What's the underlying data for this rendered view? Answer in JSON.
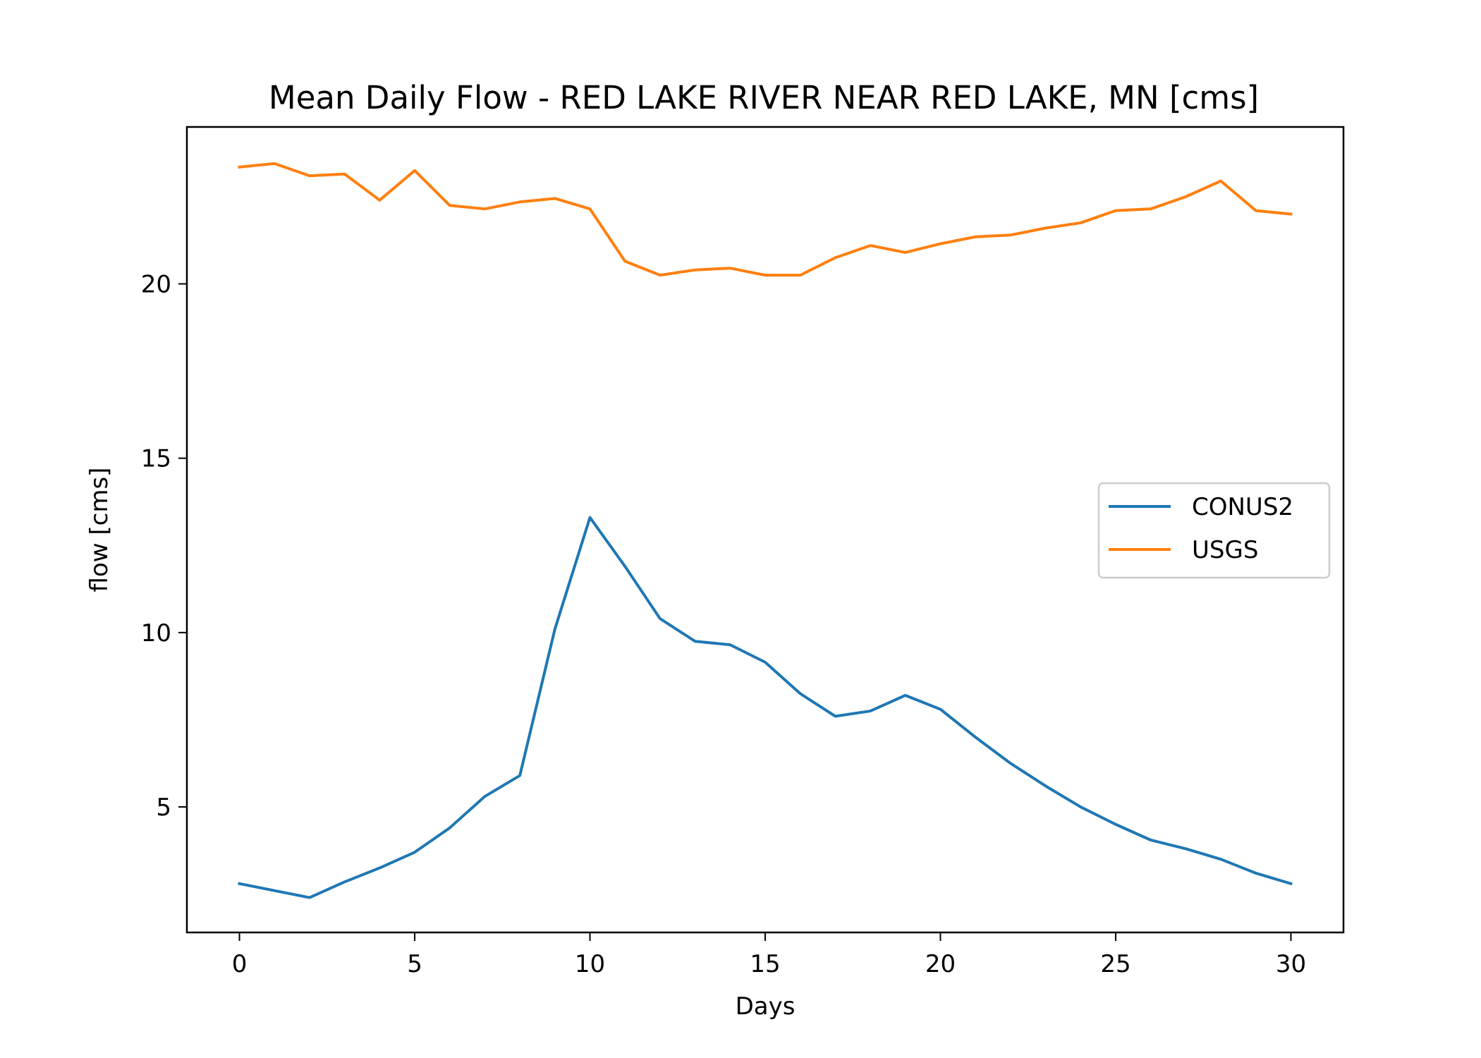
{
  "chart_data": {
    "type": "line",
    "title": "Mean Daily Flow - RED LAKE RIVER NEAR RED LAKE, MN [cms]",
    "xlabel": "Days",
    "ylabel": "flow [cms]",
    "xlim": [
      -1.5,
      31.5
    ],
    "ylim": [
      1.4,
      24.5
    ],
    "xticks": [
      0,
      5,
      10,
      15,
      20,
      25,
      30
    ],
    "yticks": [
      5,
      10,
      15,
      20
    ],
    "grid": false,
    "legend": "center-right",
    "x": [
      0,
      1,
      2,
      3,
      4,
      5,
      6,
      7,
      8,
      9,
      10,
      11,
      12,
      13,
      14,
      15,
      16,
      17,
      18,
      19,
      20,
      21,
      22,
      23,
      24,
      25,
      26,
      27,
      28,
      29,
      30
    ],
    "series": [
      {
        "name": "CONUS2",
        "color": "#1f77b4",
        "values": [
          2.8,
          2.6,
          2.4,
          2.85,
          3.25,
          3.7,
          4.4,
          5.3,
          5.9,
          10.1,
          13.3,
          11.9,
          10.4,
          9.75,
          9.65,
          9.15,
          8.25,
          7.6,
          7.75,
          8.2,
          7.8,
          7.0,
          6.25,
          5.6,
          5.0,
          4.5,
          4.05,
          3.8,
          3.5,
          3.1,
          2.8
        ]
      },
      {
        "name": "USGS",
        "color": "#ff7f0e",
        "values": [
          23.35,
          23.45,
          23.1,
          23.15,
          22.4,
          23.25,
          22.25,
          22.15,
          22.35,
          22.45,
          22.15,
          20.65,
          20.25,
          20.4,
          20.45,
          20.25,
          20.25,
          20.75,
          21.1,
          20.9,
          21.15,
          21.35,
          21.4,
          21.6,
          21.75,
          22.1,
          22.15,
          22.5,
          22.95,
          22.1,
          22.0
        ]
      }
    ]
  }
}
